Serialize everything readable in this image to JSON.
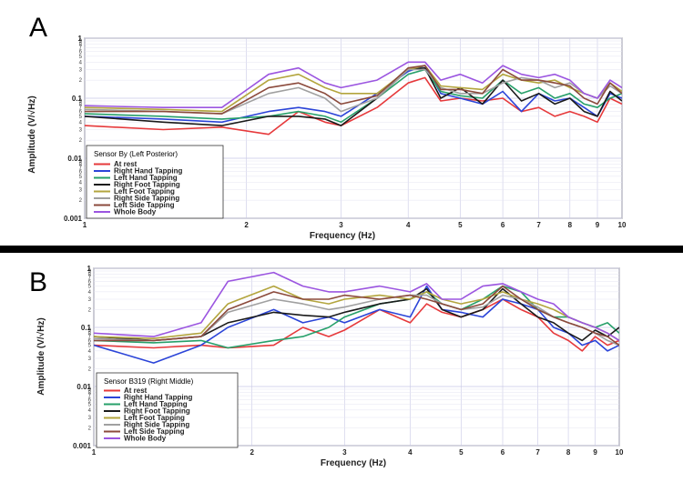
{
  "separator_color": "#000000",
  "chart_data": [
    {
      "type": "line",
      "panel_label": "A",
      "xscale": "log",
      "yscale": "log",
      "xlim": [
        1,
        10
      ],
      "ylim": [
        0.001,
        1
      ],
      "xlabel": "Frequency (Hz)",
      "ylabel": "Amplitude (V/√Hz)",
      "xticks": [
        "1",
        "2",
        "3",
        "4",
        "5",
        "6",
        "7",
        "8",
        "9",
        "10"
      ],
      "yticks": [
        "0.001",
        "0.01",
        "0.1",
        "1"
      ],
      "grid": true,
      "legend_title": "Sensor By  (Left Posterior)",
      "legend_position": "bottom-left",
      "x": [
        1,
        1.4,
        1.8,
        2.2,
        2.5,
        2.8,
        3.0,
        3.5,
        4.0,
        4.3,
        4.6,
        5.0,
        5.5,
        6.0,
        6.5,
        7.0,
        7.5,
        8.0,
        8.5,
        9.0,
        9.5,
        10
      ],
      "series": [
        {
          "name": "At rest",
          "color": "#e6393b",
          "values": [
            0.035,
            0.03,
            0.033,
            0.025,
            0.06,
            0.04,
            0.035,
            0.07,
            0.18,
            0.22,
            0.09,
            0.1,
            0.09,
            0.1,
            0.06,
            0.07,
            0.05,
            0.06,
            0.05,
            0.04,
            0.1,
            0.08
          ]
        },
        {
          "name": "Right Hand Tapping",
          "color": "#2b44d8",
          "values": [
            0.05,
            0.045,
            0.04,
            0.06,
            0.07,
            0.06,
            0.05,
            0.12,
            0.28,
            0.35,
            0.12,
            0.1,
            0.08,
            0.13,
            0.06,
            0.12,
            0.09,
            0.1,
            0.07,
            0.05,
            0.12,
            0.1
          ]
        },
        {
          "name": "Left Hand Tapping",
          "color": "#27a06a",
          "values": [
            0.055,
            0.05,
            0.045,
            0.05,
            0.06,
            0.05,
            0.04,
            0.1,
            0.25,
            0.3,
            0.13,
            0.11,
            0.1,
            0.2,
            0.12,
            0.15,
            0.1,
            0.12,
            0.08,
            0.07,
            0.1,
            0.12
          ]
        },
        {
          "name": "Right Foot Tapping",
          "color": "#1a1a1a",
          "values": [
            0.05,
            0.04,
            0.035,
            0.05,
            0.05,
            0.045,
            0.035,
            0.1,
            0.3,
            0.32,
            0.1,
            0.15,
            0.08,
            0.2,
            0.09,
            0.12,
            0.08,
            0.1,
            0.06,
            0.05,
            0.13,
            0.09
          ]
        },
        {
          "name": "Left Foot Tapping",
          "color": "#b3a53e",
          "values": [
            0.07,
            0.065,
            0.06,
            0.2,
            0.25,
            0.15,
            0.12,
            0.12,
            0.3,
            0.35,
            0.16,
            0.15,
            0.14,
            0.25,
            0.2,
            0.18,
            0.2,
            0.15,
            0.12,
            0.1,
            0.18,
            0.13
          ]
        },
        {
          "name": "Right Side Tapping",
          "color": "#a0a0a0",
          "values": [
            0.065,
            0.06,
            0.055,
            0.12,
            0.15,
            0.1,
            0.06,
            0.1,
            0.3,
            0.3,
            0.15,
            0.12,
            0.12,
            0.18,
            0.22,
            0.2,
            0.15,
            0.18,
            0.12,
            0.1,
            0.16,
            0.12
          ]
        },
        {
          "name": "Left Side Tapping",
          "color": "#8b4a3c",
          "values": [
            0.06,
            0.06,
            0.055,
            0.15,
            0.18,
            0.12,
            0.08,
            0.11,
            0.32,
            0.35,
            0.14,
            0.14,
            0.12,
            0.3,
            0.2,
            0.2,
            0.18,
            0.16,
            0.1,
            0.08,
            0.18,
            0.12
          ]
        },
        {
          "name": "Whole Body",
          "color": "#9b55e0",
          "values": [
            0.075,
            0.07,
            0.07,
            0.25,
            0.32,
            0.18,
            0.15,
            0.2,
            0.4,
            0.4,
            0.2,
            0.25,
            0.18,
            0.35,
            0.25,
            0.22,
            0.25,
            0.2,
            0.12,
            0.1,
            0.2,
            0.15
          ]
        }
      ]
    },
    {
      "type": "line",
      "panel_label": "B",
      "xscale": "log",
      "yscale": "log",
      "xlim": [
        1,
        10
      ],
      "ylim": [
        0.001,
        1
      ],
      "xlabel": "Frequency (Hz)",
      "ylabel": "Amplitude (V/√Hz)",
      "xticks": [
        "1",
        "2",
        "3",
        "4",
        "5",
        "6",
        "7",
        "8",
        "9",
        "10"
      ],
      "yticks": [
        "0.001",
        "0.01",
        "0.1",
        "1"
      ],
      "grid": true,
      "legend_title": "Sensor B319 (Right Middle)",
      "legend_position": "bottom-left",
      "x": [
        1,
        1.3,
        1.6,
        1.8,
        2.2,
        2.5,
        2.8,
        3.0,
        3.5,
        4.0,
        4.3,
        4.6,
        5.0,
        5.5,
        6.0,
        6.5,
        7.0,
        7.5,
        8.0,
        8.5,
        9.0,
        9.5,
        10
      ],
      "series": [
        {
          "name": "At rest",
          "color": "#e6393b",
          "values": [
            0.05,
            0.045,
            0.05,
            0.045,
            0.05,
            0.1,
            0.07,
            0.09,
            0.2,
            0.12,
            0.25,
            0.18,
            0.15,
            0.2,
            0.3,
            0.2,
            0.15,
            0.08,
            0.06,
            0.04,
            0.07,
            0.05,
            0.06
          ]
        },
        {
          "name": "Right Hand Tapping",
          "color": "#2b44d8",
          "values": [
            0.05,
            0.025,
            0.05,
            0.1,
            0.2,
            0.12,
            0.15,
            0.12,
            0.2,
            0.15,
            0.5,
            0.2,
            0.18,
            0.15,
            0.3,
            0.25,
            0.2,
            0.1,
            0.08,
            0.05,
            0.06,
            0.04,
            0.05
          ]
        },
        {
          "name": "Left Hand Tapping",
          "color": "#27a06a",
          "values": [
            0.06,
            0.055,
            0.06,
            0.045,
            0.06,
            0.07,
            0.1,
            0.15,
            0.25,
            0.3,
            0.4,
            0.25,
            0.2,
            0.3,
            0.5,
            0.4,
            0.2,
            0.15,
            0.15,
            0.12,
            0.1,
            0.12,
            0.08
          ]
        },
        {
          "name": "Right Foot Tapping",
          "color": "#1a1a1a",
          "values": [
            0.07,
            0.06,
            0.07,
            0.12,
            0.18,
            0.16,
            0.15,
            0.18,
            0.25,
            0.3,
            0.45,
            0.2,
            0.15,
            0.2,
            0.45,
            0.25,
            0.15,
            0.12,
            0.08,
            0.06,
            0.09,
            0.07,
            0.1
          ]
        },
        {
          "name": "Left Foot Tapping",
          "color": "#b3a53e",
          "values": [
            0.07,
            0.065,
            0.08,
            0.25,
            0.5,
            0.3,
            0.25,
            0.3,
            0.35,
            0.3,
            0.4,
            0.3,
            0.25,
            0.3,
            0.4,
            0.3,
            0.25,
            0.2,
            0.15,
            0.12,
            0.1,
            0.08,
            0.06
          ]
        },
        {
          "name": "Right Side Tapping",
          "color": "#a0a0a0",
          "values": [
            0.065,
            0.06,
            0.07,
            0.18,
            0.3,
            0.25,
            0.2,
            0.22,
            0.3,
            0.35,
            0.35,
            0.25,
            0.2,
            0.22,
            0.35,
            0.3,
            0.22,
            0.15,
            0.12,
            0.1,
            0.08,
            0.06,
            0.05
          ]
        },
        {
          "name": "Left Side Tapping",
          "color": "#8b4a3c",
          "values": [
            0.06,
            0.06,
            0.07,
            0.2,
            0.4,
            0.3,
            0.3,
            0.35,
            0.3,
            0.35,
            0.3,
            0.25,
            0.2,
            0.25,
            0.5,
            0.3,
            0.2,
            0.15,
            0.12,
            0.1,
            0.08,
            0.07,
            0.05
          ]
        },
        {
          "name": "Whole Body",
          "color": "#9b55e0",
          "values": [
            0.08,
            0.07,
            0.12,
            0.6,
            0.85,
            0.5,
            0.4,
            0.4,
            0.5,
            0.4,
            0.55,
            0.3,
            0.3,
            0.5,
            0.55,
            0.4,
            0.3,
            0.25,
            0.15,
            0.12,
            0.1,
            0.08,
            0.06
          ]
        }
      ]
    }
  ]
}
